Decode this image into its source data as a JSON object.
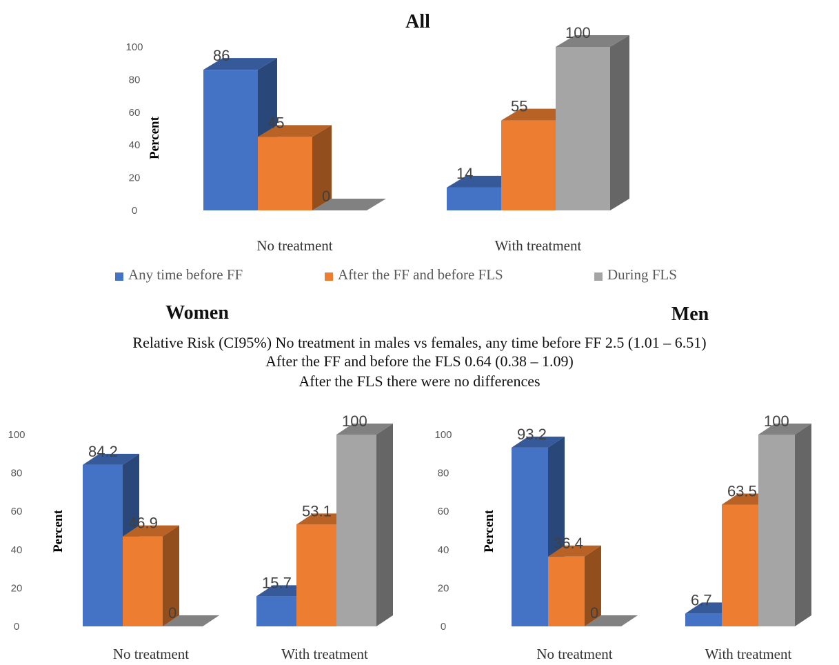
{
  "notes": [
    "Relative Risk (CI95%) No treatment in males vs females, any time before FF 2.5 (1.01 – 6.51)",
    "After the FF and before the FLS 0.64 (0.38 – 1.09)",
    "After the FLS there were no differences"
  ],
  "legend": [
    {
      "label": "Any time before FF",
      "color": "#4472C4"
    },
    {
      "label": "After the FF and before FLS",
      "color": "#ED7D31"
    },
    {
      "label": "During FLS",
      "color": "#A5A5A5"
    }
  ],
  "chart_data": [
    {
      "type": "bar",
      "title": "All",
      "ylabel": "Percent",
      "ylim": [
        0,
        100
      ],
      "yticks": [
        "0",
        "20",
        "40",
        "60",
        "80",
        "100"
      ],
      "categories": [
        "No treatment",
        "With treatment"
      ],
      "series": [
        {
          "name": "Any time before FF",
          "values": [
            86,
            14
          ],
          "labels": [
            "86",
            "14"
          ]
        },
        {
          "name": "After the FF and before FLS",
          "values": [
            45,
            55
          ],
          "labels": [
            "45",
            "55"
          ]
        },
        {
          "name": "During FLS",
          "values": [
            0,
            100
          ],
          "labels": [
            "0",
            "100"
          ]
        }
      ]
    },
    {
      "type": "bar",
      "title": "Women",
      "ylabel": "Percent",
      "ylim": [
        0,
        100
      ],
      "yticks": [
        "0",
        "20",
        "40",
        "60",
        "80",
        "100"
      ],
      "categories": [
        "No treatment",
        "With treatment"
      ],
      "series": [
        {
          "name": "Any time before FF",
          "values": [
            84.2,
            15.7
          ],
          "labels": [
            "84.2",
            "15.7"
          ]
        },
        {
          "name": "After the FF and before FLS",
          "values": [
            46.9,
            53.1
          ],
          "labels": [
            "46.9",
            "53.1"
          ]
        },
        {
          "name": "During FLS",
          "values": [
            0,
            100
          ],
          "labels": [
            "0",
            "100"
          ]
        }
      ]
    },
    {
      "type": "bar",
      "title": "Men",
      "ylabel": "Percent",
      "ylim": [
        0,
        100
      ],
      "yticks": [
        "0",
        "20",
        "40",
        "60",
        "80",
        "100"
      ],
      "categories": [
        "No treatment",
        "With treatment"
      ],
      "series": [
        {
          "name": "Any time before FF",
          "values": [
            93.2,
            6.7
          ],
          "labels": [
            "93.2",
            "6.7"
          ]
        },
        {
          "name": "After the FF and before FLS",
          "values": [
            36.4,
            63.5
          ],
          "labels": [
            "36.4",
            "63.5"
          ]
        },
        {
          "name": "During FLS",
          "values": [
            0,
            100
          ],
          "labels": [
            "0",
            "100"
          ]
        }
      ]
    }
  ]
}
